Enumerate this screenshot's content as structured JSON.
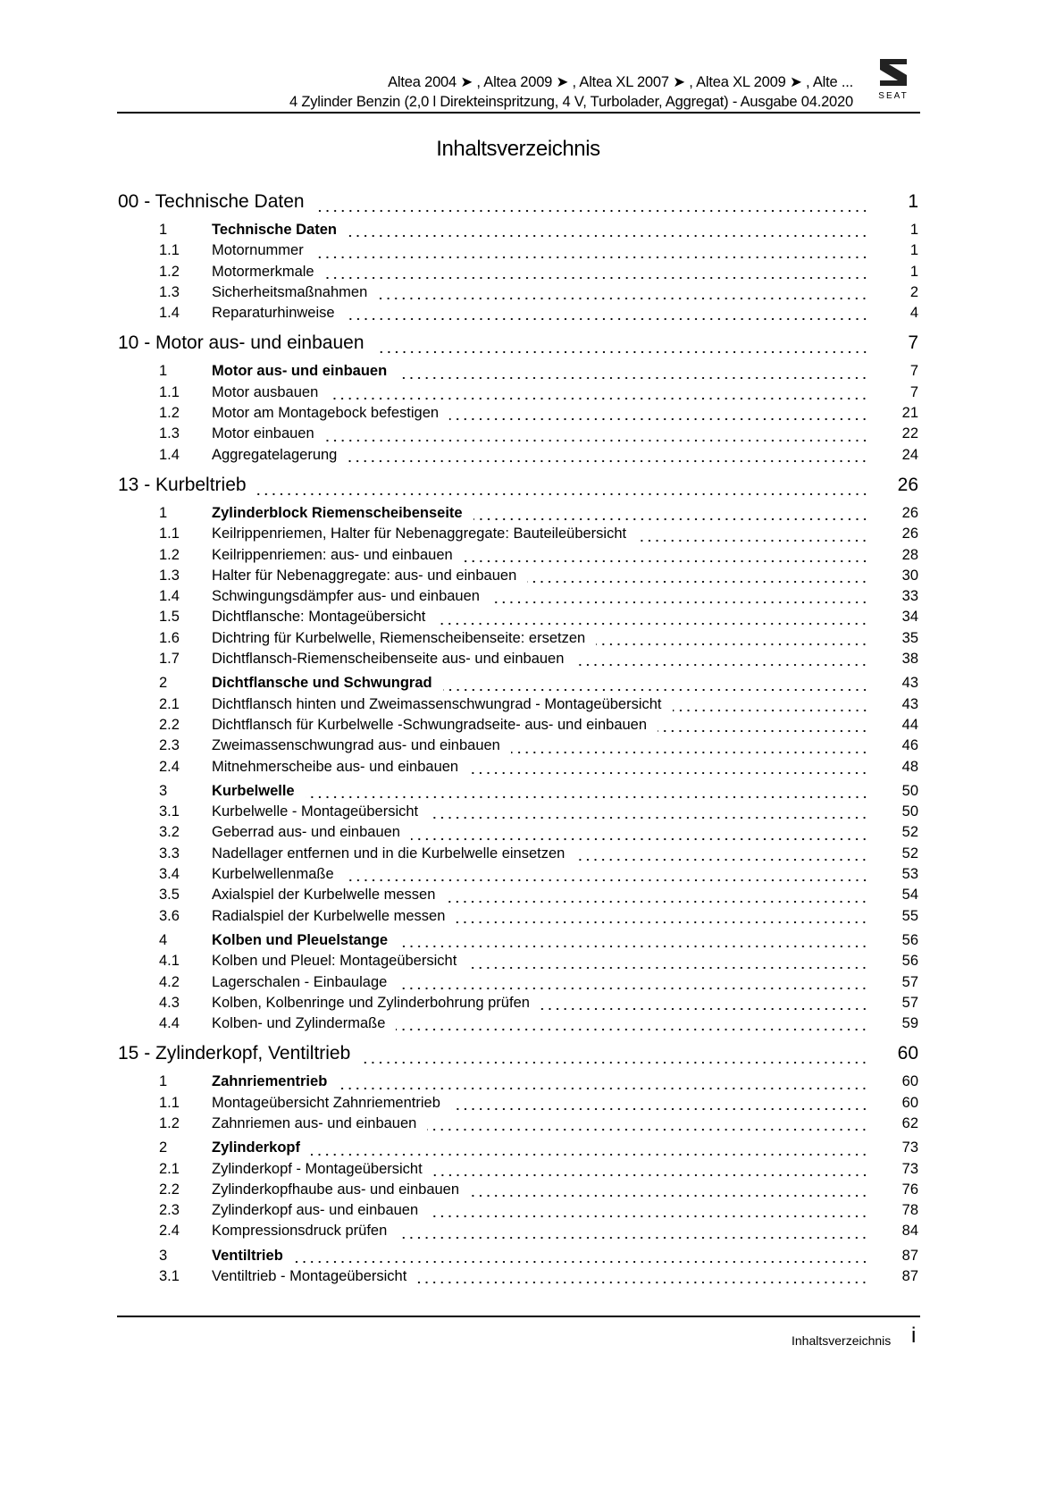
{
  "header": {
    "line1": "Altea 2004 ➤ , Altea 2009 ➤ , Altea XL 2007 ➤ , Altea XL 2009 ➤ , Alte ...",
    "line2": "4 Zylinder Benzin (2,0 l Direkteinspritzung, 4 V, Turbolader, Aggregat) - Ausgabe 04.2020",
    "logo_text": "SEAT"
  },
  "title": "Inhaltsverzeichnis",
  "sections": [
    {
      "title": "00 - Technische Daten",
      "page": "1",
      "groups": [
        {
          "num": "1",
          "title": "Technische Daten",
          "page": "1",
          "items": [
            {
              "num": "1.1",
              "title": "Motornummer",
              "page": "1"
            },
            {
              "num": "1.2",
              "title": "Motormerkmale",
              "page": "1"
            },
            {
              "num": "1.3",
              "title": "Sicherheitsmaßnahmen",
              "page": "2"
            },
            {
              "num": "1.4",
              "title": "Reparaturhinweise",
              "page": "4"
            }
          ]
        }
      ]
    },
    {
      "title": "10 - Motor aus- und einbauen",
      "page": "7",
      "groups": [
        {
          "num": "1",
          "title": "Motor aus- und einbauen",
          "page": "7",
          "items": [
            {
              "num": "1.1",
              "title": "Motor ausbauen",
              "page": "7"
            },
            {
              "num": "1.2",
              "title": "Motor am Montagebock befestigen",
              "page": "21"
            },
            {
              "num": "1.3",
              "title": "Motor einbauen",
              "page": "22"
            },
            {
              "num": "1.4",
              "title": "Aggregatelagerung",
              "page": "24"
            }
          ]
        }
      ]
    },
    {
      "title": "13 - Kurbeltrieb",
      "page": "26",
      "groups": [
        {
          "num": "1",
          "title": "Zylinderblock Riemenscheibenseite",
          "page": "26",
          "items": [
            {
              "num": "1.1",
              "title": "Keilrippenriemen, Halter für Nebenaggregate: Bauteileübersicht",
              "page": "26"
            },
            {
              "num": "1.2",
              "title": "Keilrippenriemen: aus- und einbauen",
              "page": "28"
            },
            {
              "num": "1.3",
              "title": "Halter für Nebenaggregate: aus- und einbauen",
              "page": "30"
            },
            {
              "num": "1.4",
              "title": "Schwingungsdämpfer aus- und einbauen",
              "page": "33"
            },
            {
              "num": "1.5",
              "title": "Dichtflansche: Montageübersicht",
              "page": "34"
            },
            {
              "num": "1.6",
              "title": "Dichtring für Kurbelwelle, Riemenscheibenseite: ersetzen",
              "page": "35"
            },
            {
              "num": "1.7",
              "title": "Dichtflansch-Riemenscheibenseite aus- und einbauen",
              "page": "38"
            }
          ]
        },
        {
          "num": "2",
          "title": "Dichtflansche und Schwungrad",
          "page": "43",
          "items": [
            {
              "num": "2.1",
              "title": "Dichtflansch hinten und Zweimassenschwungrad - Montageübersicht",
              "page": "43"
            },
            {
              "num": "2.2",
              "title": "Dichtflansch für Kurbelwelle -Schwungradseite- aus- und einbauen",
              "page": "44"
            },
            {
              "num": "2.3",
              "title": "Zweimassenschwungrad aus- und einbauen",
              "page": "46"
            },
            {
              "num": "2.4",
              "title": "Mitnehmerscheibe aus- und einbauen",
              "page": "48"
            }
          ]
        },
        {
          "num": "3",
          "title": "Kurbelwelle",
          "page": "50",
          "items": [
            {
              "num": "3.1",
              "title": "Kurbelwelle - Montageübersicht",
              "page": "50"
            },
            {
              "num": "3.2",
              "title": "Geberrad aus- und einbauen",
              "page": "52"
            },
            {
              "num": "3.3",
              "title": "Nadellager entfernen und in die Kurbelwelle einsetzen",
              "page": "52"
            },
            {
              "num": "3.4",
              "title": "Kurbelwellenmaße",
              "page": "53"
            },
            {
              "num": "3.5",
              "title": "Axialspiel der Kurbelwelle messen",
              "page": "54"
            },
            {
              "num": "3.6",
              "title": "Radialspiel der Kurbelwelle messen",
              "page": "55"
            }
          ]
        },
        {
          "num": "4",
          "title": "Kolben und Pleuelstange",
          "page": "56",
          "items": [
            {
              "num": "4.1",
              "title": "Kolben und Pleuel: Montageübersicht",
              "page": "56"
            },
            {
              "num": "4.2",
              "title": "Lagerschalen - Einbaulage",
              "page": "57"
            },
            {
              "num": "4.3",
              "title": "Kolben, Kolbenringe und Zylinderbohrung prüfen",
              "page": "57"
            },
            {
              "num": "4.4",
              "title": "Kolben- und Zylindermaße",
              "page": "59"
            }
          ]
        }
      ]
    },
    {
      "title": "15 - Zylinderkopf, Ventiltrieb",
      "page": "60",
      "groups": [
        {
          "num": "1",
          "title": "Zahnriementrieb",
          "page": "60",
          "items": [
            {
              "num": "1.1",
              "title": "Montageübersicht Zahnriementrieb",
              "page": "60"
            },
            {
              "num": "1.2",
              "title": "Zahnriemen aus- und einbauen",
              "page": "62"
            }
          ]
        },
        {
          "num": "2",
          "title": "Zylinderkopf",
          "page": "73",
          "items": [
            {
              "num": "2.1",
              "title": "Zylinderkopf - Montageübersicht",
              "page": "73"
            },
            {
              "num": "2.2",
              "title": "Zylinderkopfhaube aus- und einbauen",
              "page": "76"
            },
            {
              "num": "2.3",
              "title": "Zylinderkopf aus- und einbauen",
              "page": "78"
            },
            {
              "num": "2.4",
              "title": "Kompressionsdruck prüfen",
              "page": "84"
            }
          ]
        },
        {
          "num": "3",
          "title": "Ventiltrieb",
          "page": "87",
          "items": [
            {
              "num": "3.1",
              "title": "Ventiltrieb - Montageübersicht",
              "page": "87"
            }
          ]
        }
      ]
    }
  ],
  "footer": {
    "label": "Inhaltsverzeichnis",
    "page": "i"
  }
}
